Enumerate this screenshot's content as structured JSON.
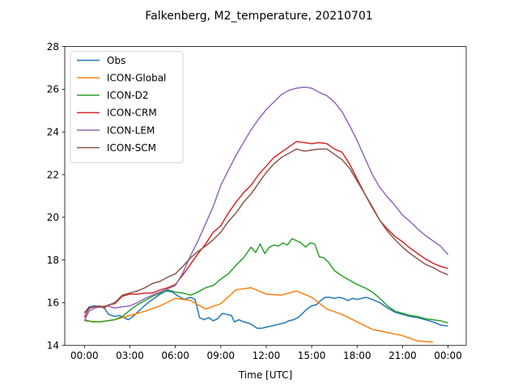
{
  "chart_data": {
    "type": "line",
    "title": "Falkenberg, M2_temperature, 20210701",
    "xlabel": "Time [UTC]",
    "ylabel": "",
    "xlim": [
      -1.3,
      25.2
    ],
    "ylim": [
      14,
      28
    ],
    "x_ticks": [
      0,
      3,
      6,
      9,
      12,
      15,
      18,
      21,
      24
    ],
    "x_tick_labels": [
      "00:00",
      "03:00",
      "06:00",
      "09:00",
      "12:00",
      "15:00",
      "18:00",
      "21:00",
      "00:00"
    ],
    "y_ticks": [
      14,
      16,
      18,
      20,
      22,
      24,
      26,
      28
    ],
    "y_tick_labels": [
      "14",
      "16",
      "18",
      "20",
      "22",
      "24",
      "26",
      "28"
    ],
    "grid": false,
    "legend_position": "top-left",
    "series": [
      {
        "name": "Obs",
        "color": "#1f77b4",
        "points": [
          [
            0,
            15.5
          ],
          [
            0.3,
            15.8
          ],
          [
            0.7,
            15.85
          ],
          [
            1.0,
            15.8
          ],
          [
            1.3,
            15.75
          ],
          [
            1.6,
            15.45
          ],
          [
            2.0,
            15.35
          ],
          [
            2.3,
            15.4
          ],
          [
            2.6,
            15.3
          ],
          [
            2.9,
            15.2
          ],
          [
            3.2,
            15.35
          ],
          [
            3.5,
            15.55
          ],
          [
            3.8,
            15.75
          ],
          [
            4.2,
            16.0
          ],
          [
            4.6,
            16.2
          ],
          [
            5.0,
            16.4
          ],
          [
            5.4,
            16.55
          ],
          [
            5.8,
            16.5
          ],
          [
            6.2,
            16.3
          ],
          [
            6.6,
            16.15
          ],
          [
            7.0,
            16.25
          ],
          [
            7.3,
            16.15
          ],
          [
            7.6,
            15.3
          ],
          [
            7.9,
            15.2
          ],
          [
            8.2,
            15.3
          ],
          [
            8.5,
            15.15
          ],
          [
            8.8,
            15.25
          ],
          [
            9.1,
            15.5
          ],
          [
            9.4,
            15.45
          ],
          [
            9.7,
            15.4
          ],
          [
            9.9,
            15.1
          ],
          [
            10.2,
            15.2
          ],
          [
            10.5,
            15.1
          ],
          [
            10.8,
            15.05
          ],
          [
            11.1,
            14.95
          ],
          [
            11.4,
            14.8
          ],
          [
            11.7,
            14.8
          ],
          [
            12.0,
            14.85
          ],
          [
            12.3,
            14.9
          ],
          [
            12.6,
            14.95
          ],
          [
            12.9,
            15.0
          ],
          [
            13.2,
            15.05
          ],
          [
            13.5,
            15.15
          ],
          [
            13.8,
            15.2
          ],
          [
            14.1,
            15.3
          ],
          [
            14.4,
            15.5
          ],
          [
            14.7,
            15.7
          ],
          [
            15.0,
            15.85
          ],
          [
            15.3,
            15.9
          ],
          [
            15.6,
            16.1
          ],
          [
            15.9,
            16.25
          ],
          [
            16.2,
            16.25
          ],
          [
            16.5,
            16.2
          ],
          [
            16.8,
            16.25
          ],
          [
            17.1,
            16.2
          ],
          [
            17.4,
            16.1
          ],
          [
            17.7,
            16.2
          ],
          [
            18.0,
            16.15
          ],
          [
            18.3,
            16.2
          ],
          [
            18.6,
            16.25
          ],
          [
            19.0,
            16.15
          ],
          [
            19.5,
            16.0
          ],
          [
            20.0,
            15.75
          ],
          [
            20.5,
            15.55
          ],
          [
            21.0,
            15.45
          ],
          [
            21.5,
            15.35
          ],
          [
            22.0,
            15.3
          ],
          [
            22.5,
            15.2
          ],
          [
            23.0,
            15.1
          ],
          [
            23.5,
            14.95
          ],
          [
            24.0,
            14.9
          ]
        ]
      },
      {
        "name": "ICON-Global",
        "color": "#ff7f0e",
        "points": [
          [
            0,
            15.15
          ],
          [
            1,
            15.1
          ],
          [
            2,
            15.2
          ],
          [
            3,
            15.4
          ],
          [
            4,
            15.6
          ],
          [
            5,
            15.85
          ],
          [
            6,
            16.2
          ],
          [
            7,
            16.1
          ],
          [
            8,
            15.7
          ],
          [
            9,
            15.95
          ],
          [
            10,
            16.6
          ],
          [
            11,
            16.7
          ],
          [
            12,
            16.4
          ],
          [
            13,
            16.35
          ],
          [
            14,
            16.55
          ],
          [
            15,
            16.25
          ],
          [
            16,
            15.7
          ],
          [
            17,
            15.45
          ],
          [
            18,
            15.1
          ],
          [
            19,
            14.75
          ],
          [
            20,
            14.6
          ],
          [
            21,
            14.45
          ],
          [
            22,
            14.2
          ],
          [
            23,
            14.15
          ]
        ]
      },
      {
        "name": "ICON-D2",
        "color": "#2ca02c",
        "points": [
          [
            0,
            15.2
          ],
          [
            0.5,
            15.1
          ],
          [
            1.0,
            15.1
          ],
          [
            1.5,
            15.15
          ],
          [
            2.0,
            15.2
          ],
          [
            2.5,
            15.35
          ],
          [
            3.0,
            15.65
          ],
          [
            3.5,
            15.9
          ],
          [
            4.0,
            16.1
          ],
          [
            4.5,
            16.3
          ],
          [
            5.0,
            16.45
          ],
          [
            5.5,
            16.6
          ],
          [
            6.0,
            16.5
          ],
          [
            6.5,
            16.45
          ],
          [
            7.0,
            16.35
          ],
          [
            7.5,
            16.5
          ],
          [
            8.0,
            16.7
          ],
          [
            8.5,
            16.8
          ],
          [
            9.0,
            17.1
          ],
          [
            9.5,
            17.35
          ],
          [
            10.0,
            17.75
          ],
          [
            10.5,
            18.1
          ],
          [
            11.0,
            18.6
          ],
          [
            11.3,
            18.35
          ],
          [
            11.6,
            18.75
          ],
          [
            11.9,
            18.3
          ],
          [
            12.2,
            18.6
          ],
          [
            12.5,
            18.7
          ],
          [
            12.8,
            18.65
          ],
          [
            13.1,
            18.8
          ],
          [
            13.4,
            18.7
          ],
          [
            13.7,
            19.0
          ],
          [
            14.0,
            18.9
          ],
          [
            14.3,
            18.8
          ],
          [
            14.6,
            18.6
          ],
          [
            14.9,
            18.8
          ],
          [
            15.2,
            18.75
          ],
          [
            15.5,
            18.15
          ],
          [
            15.8,
            18.1
          ],
          [
            16.1,
            17.9
          ],
          [
            16.5,
            17.5
          ],
          [
            17.0,
            17.25
          ],
          [
            17.5,
            17.05
          ],
          [
            18.0,
            16.85
          ],
          [
            18.5,
            16.7
          ],
          [
            19.0,
            16.5
          ],
          [
            19.5,
            16.2
          ],
          [
            20.0,
            15.85
          ],
          [
            20.5,
            15.6
          ],
          [
            21.0,
            15.5
          ],
          [
            21.5,
            15.4
          ],
          [
            22.0,
            15.35
          ],
          [
            22.5,
            15.25
          ],
          [
            23.0,
            15.2
          ],
          [
            23.5,
            15.15
          ],
          [
            24.0,
            15.05
          ]
        ]
      },
      {
        "name": "ICON-CRM",
        "color": "#d62728",
        "points": [
          [
            0,
            15.3
          ],
          [
            0.3,
            15.75
          ],
          [
            0.7,
            15.8
          ],
          [
            1.0,
            15.85
          ],
          [
            1.3,
            15.75
          ],
          [
            1.6,
            15.9
          ],
          [
            2.0,
            15.95
          ],
          [
            2.5,
            16.3
          ],
          [
            3.0,
            16.4
          ],
          [
            3.5,
            16.4
          ],
          [
            4.0,
            16.45
          ],
          [
            4.5,
            16.45
          ],
          [
            5.0,
            16.6
          ],
          [
            5.5,
            16.7
          ],
          [
            6.0,
            16.85
          ],
          [
            6.5,
            17.3
          ],
          [
            7.0,
            17.8
          ],
          [
            7.5,
            18.3
          ],
          [
            8.0,
            18.75
          ],
          [
            8.5,
            19.3
          ],
          [
            9.0,
            19.6
          ],
          [
            9.5,
            20.2
          ],
          [
            10.0,
            20.7
          ],
          [
            10.5,
            21.15
          ],
          [
            11.0,
            21.5
          ],
          [
            11.5,
            22.0
          ],
          [
            12.0,
            22.4
          ],
          [
            12.5,
            22.8
          ],
          [
            13.0,
            23.05
          ],
          [
            13.5,
            23.3
          ],
          [
            14.0,
            23.55
          ],
          [
            14.5,
            23.5
          ],
          [
            15.0,
            23.45
          ],
          [
            15.5,
            23.5
          ],
          [
            16.0,
            23.45
          ],
          [
            16.5,
            23.2
          ],
          [
            17.0,
            23.05
          ],
          [
            17.5,
            22.5
          ],
          [
            18.0,
            21.8
          ],
          [
            18.5,
            21.1
          ],
          [
            19.0,
            20.45
          ],
          [
            19.5,
            19.85
          ],
          [
            20.0,
            19.45
          ],
          [
            20.5,
            19.1
          ],
          [
            21.0,
            18.85
          ],
          [
            21.5,
            18.55
          ],
          [
            22.0,
            18.3
          ],
          [
            22.5,
            18.05
          ],
          [
            23.0,
            17.85
          ],
          [
            23.5,
            17.7
          ],
          [
            24.0,
            17.6
          ]
        ]
      },
      {
        "name": "ICON-LEM",
        "color": "#9467bd",
        "points": [
          [
            0,
            15.15
          ],
          [
            0.3,
            15.6
          ],
          [
            0.7,
            15.75
          ],
          [
            1.0,
            15.8
          ],
          [
            1.5,
            15.85
          ],
          [
            2.0,
            15.75
          ],
          [
            2.5,
            15.8
          ],
          [
            3.0,
            15.85
          ],
          [
            3.5,
            16.0
          ],
          [
            4.0,
            16.2
          ],
          [
            4.5,
            16.35
          ],
          [
            5.0,
            16.5
          ],
          [
            5.5,
            16.65
          ],
          [
            6.0,
            16.8
          ],
          [
            6.5,
            17.4
          ],
          [
            7.0,
            18.2
          ],
          [
            7.5,
            18.9
          ],
          [
            8.0,
            19.7
          ],
          [
            8.5,
            20.5
          ],
          [
            9.0,
            21.5
          ],
          [
            9.5,
            22.2
          ],
          [
            10.0,
            22.9
          ],
          [
            10.5,
            23.5
          ],
          [
            11.0,
            24.1
          ],
          [
            11.5,
            24.6
          ],
          [
            12.0,
            25.05
          ],
          [
            12.5,
            25.4
          ],
          [
            13.0,
            25.75
          ],
          [
            13.5,
            25.95
          ],
          [
            14.0,
            26.05
          ],
          [
            14.5,
            26.1
          ],
          [
            15.0,
            26.05
          ],
          [
            15.5,
            25.85
          ],
          [
            16.0,
            25.7
          ],
          [
            16.5,
            25.4
          ],
          [
            17.0,
            24.95
          ],
          [
            17.5,
            24.3
          ],
          [
            18.0,
            23.6
          ],
          [
            18.5,
            22.8
          ],
          [
            19.0,
            22.0
          ],
          [
            19.5,
            21.4
          ],
          [
            20.0,
            20.95
          ],
          [
            20.5,
            20.55
          ],
          [
            21.0,
            20.1
          ],
          [
            21.5,
            19.8
          ],
          [
            22.0,
            19.45
          ],
          [
            22.5,
            19.15
          ],
          [
            23.0,
            18.9
          ],
          [
            23.5,
            18.65
          ],
          [
            24.0,
            18.25
          ]
        ]
      },
      {
        "name": "ICON-SCM",
        "color": "#8c564b",
        "points": [
          [
            0,
            15.55
          ],
          [
            0.5,
            15.8
          ],
          [
            1.0,
            15.8
          ],
          [
            1.5,
            15.85
          ],
          [
            2.0,
            16.0
          ],
          [
            2.5,
            16.35
          ],
          [
            3.0,
            16.45
          ],
          [
            3.5,
            16.55
          ],
          [
            4.0,
            16.7
          ],
          [
            4.5,
            16.9
          ],
          [
            5.0,
            17.0
          ],
          [
            5.5,
            17.2
          ],
          [
            6.0,
            17.35
          ],
          [
            6.5,
            17.7
          ],
          [
            7.0,
            18.1
          ],
          [
            7.5,
            18.4
          ],
          [
            8.0,
            18.65
          ],
          [
            8.5,
            18.95
          ],
          [
            9.0,
            19.3
          ],
          [
            9.5,
            19.8
          ],
          [
            10.0,
            20.2
          ],
          [
            10.5,
            20.7
          ],
          [
            11.0,
            21.1
          ],
          [
            11.5,
            21.6
          ],
          [
            12.0,
            22.1
          ],
          [
            12.5,
            22.5
          ],
          [
            13.0,
            22.8
          ],
          [
            13.5,
            23.0
          ],
          [
            14.0,
            23.2
          ],
          [
            14.5,
            23.1
          ],
          [
            15.0,
            23.15
          ],
          [
            15.5,
            23.2
          ],
          [
            16.0,
            23.2
          ],
          [
            16.5,
            22.95
          ],
          [
            17.0,
            22.7
          ],
          [
            17.5,
            22.3
          ],
          [
            18.0,
            21.7
          ],
          [
            18.5,
            21.1
          ],
          [
            19.0,
            20.5
          ],
          [
            19.5,
            19.85
          ],
          [
            20.0,
            19.35
          ],
          [
            20.5,
            18.95
          ],
          [
            21.0,
            18.6
          ],
          [
            21.5,
            18.3
          ],
          [
            22.0,
            18.05
          ],
          [
            22.5,
            17.8
          ],
          [
            23.0,
            17.65
          ],
          [
            23.5,
            17.45
          ],
          [
            24.0,
            17.3
          ]
        ]
      }
    ]
  }
}
